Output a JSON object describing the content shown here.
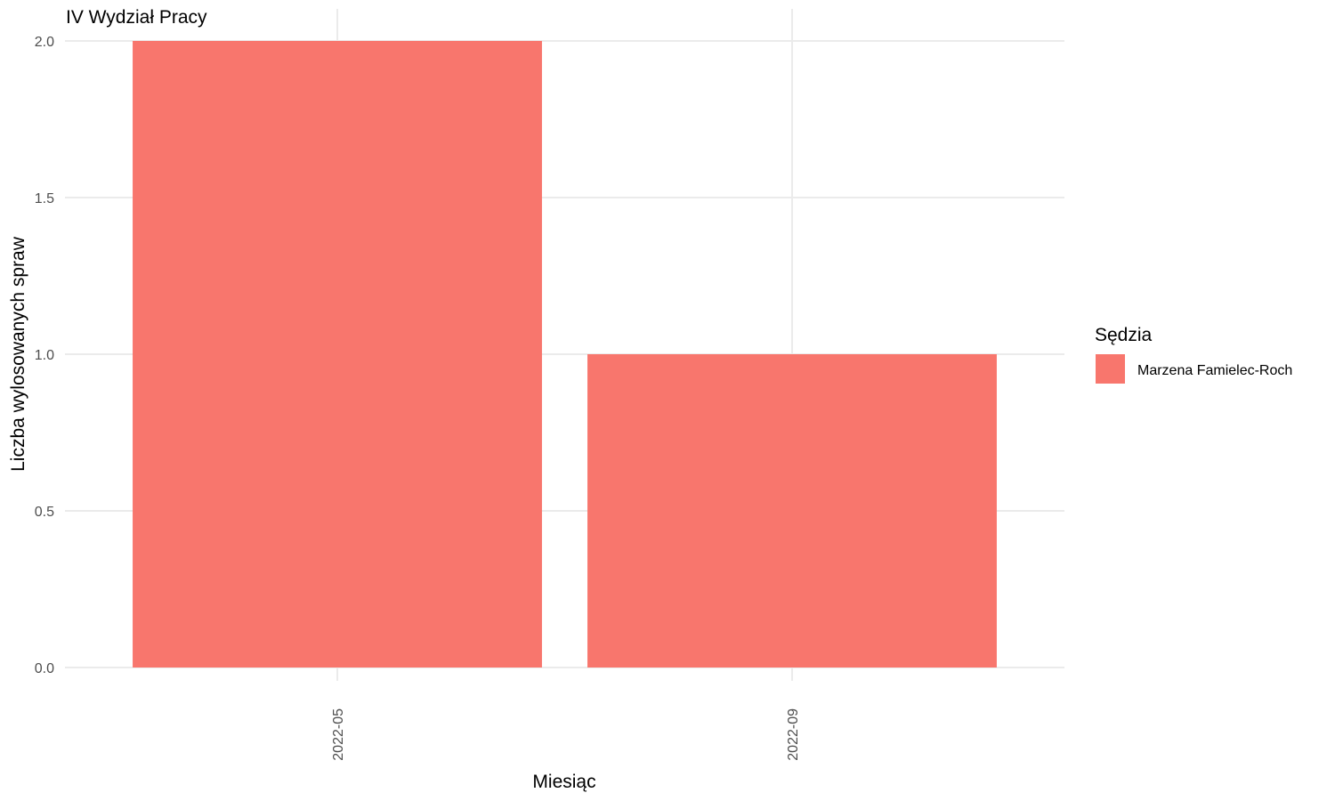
{
  "chart_data": {
    "type": "bar",
    "title": "IV Wydział Pracy",
    "xlabel": "Miesiąc",
    "ylabel": "Liczba wylosowanych spraw",
    "categories": [
      "2022-05",
      "2022-09"
    ],
    "series": [
      {
        "name": "Marzena Famielec-Roch",
        "values": [
          2,
          1
        ],
        "color": "#F8766D"
      }
    ],
    "ylim": [
      0,
      2
    ],
    "yticks": [
      0.0,
      0.5,
      1.0,
      1.5,
      2.0
    ],
    "ytick_labels": [
      "0.0",
      "0.5",
      "1.0",
      "1.5",
      "2.0"
    ],
    "grid": true,
    "legend": {
      "title": "Sędzia",
      "position": "right"
    }
  }
}
